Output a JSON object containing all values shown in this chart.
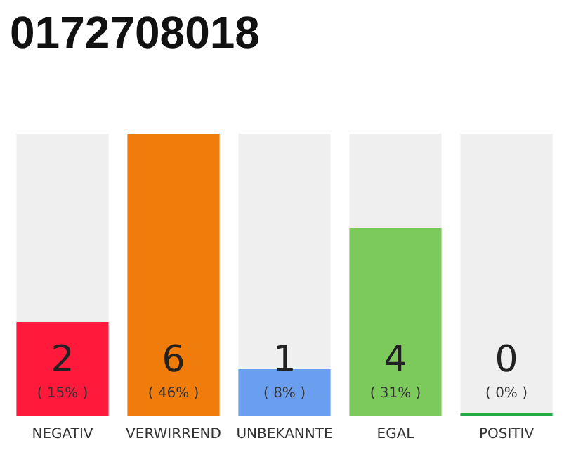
{
  "chart_data": {
    "type": "bar",
    "title": "0172708018",
    "categories": [
      "NEGATIV",
      "VERWIRREND",
      "UNBEKANNTE",
      "EGAL",
      "POSITIV"
    ],
    "values": [
      2,
      6,
      1,
      4,
      0
    ],
    "colors": [
      "#ff1a3c",
      "#f07d0b",
      "#6a9eee",
      "#7cc95c",
      "#22aa44"
    ],
    "value_labels": [
      "2\n( 15% )",
      "6\n( 46% )",
      "1\n( 8% )",
      "4\n( 31% )",
      "0\n( 0% )"
    ],
    "ylim": [
      0,
      6
    ],
    "tick_labels": "x"
  }
}
